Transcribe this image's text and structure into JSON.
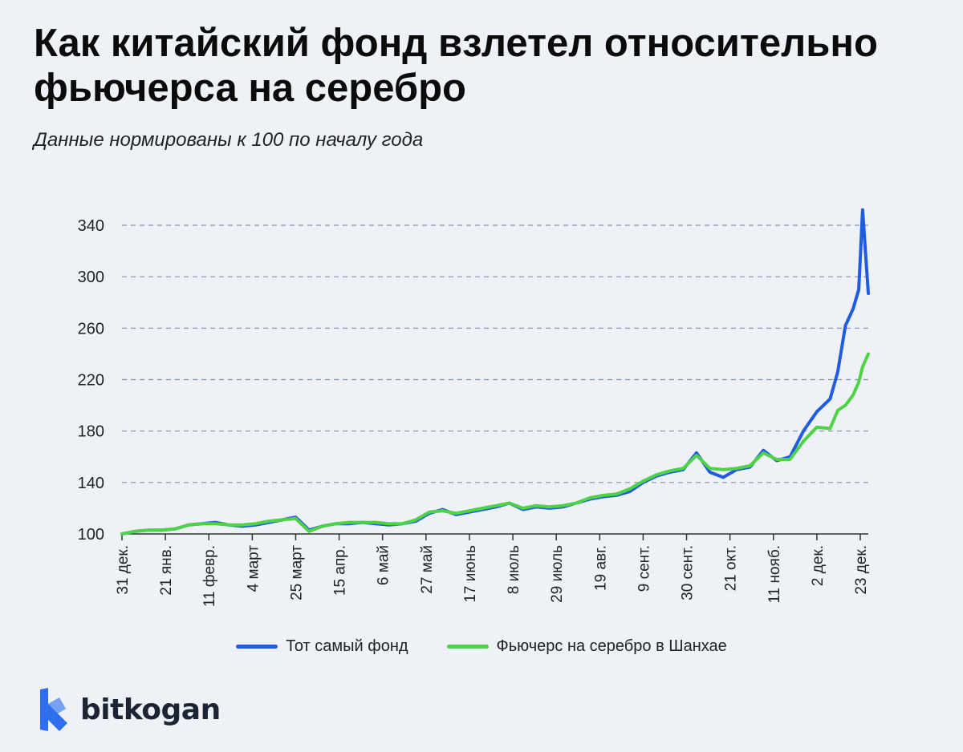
{
  "header": {
    "title": "Как китайский фонд взлетел относительно фьючерса на серебро",
    "subtitle": "Данные нормированы к 100 по началу года"
  },
  "brand": {
    "name": "bitkogan",
    "logo_icon": "bitkogan-logo-icon",
    "logo_color": "#2f6fed"
  },
  "chart_data": {
    "type": "line",
    "x_tick_labels": [
      "31 дек.",
      "21 янв.",
      "11 февр.",
      "4 март",
      "25 март",
      "15 апр.",
      "6 май",
      "27 май",
      "17 июнь",
      "8 июль",
      "29 июль",
      "19 авг.",
      "9 сент.",
      "30 сент.",
      "21 окт.",
      "11 нояб.",
      "2 дек.",
      "23 дек."
    ],
    "y_ticks": [
      100,
      140,
      180,
      220,
      260,
      300,
      340
    ],
    "ylim": [
      100,
      355
    ],
    "grid": "horizontal dashed",
    "legend_position": "bottom-center",
    "series": [
      {
        "name": "Тот самый фонд",
        "color": "#1f5ce0",
        "points": [
          [
            0,
            100
          ],
          [
            7,
            102
          ],
          [
            14,
            103
          ],
          [
            21,
            103
          ],
          [
            28,
            104
          ],
          [
            35,
            107
          ],
          [
            42,
            108
          ],
          [
            49,
            109
          ],
          [
            56,
            107
          ],
          [
            63,
            106
          ],
          [
            70,
            107
          ],
          [
            77,
            109
          ],
          [
            84,
            111
          ],
          [
            91,
            113
          ],
          [
            98,
            103
          ],
          [
            105,
            106
          ],
          [
            112,
            108
          ],
          [
            119,
            108
          ],
          [
            126,
            109
          ],
          [
            133,
            108
          ],
          [
            140,
            107
          ],
          [
            147,
            108
          ],
          [
            154,
            110
          ],
          [
            161,
            116
          ],
          [
            168,
            119
          ],
          [
            175,
            115
          ],
          [
            182,
            117
          ],
          [
            189,
            119
          ],
          [
            196,
            121
          ],
          [
            203,
            124
          ],
          [
            210,
            119
          ],
          [
            217,
            121
          ],
          [
            224,
            120
          ],
          [
            231,
            121
          ],
          [
            238,
            124
          ],
          [
            245,
            127
          ],
          [
            252,
            129
          ],
          [
            259,
            130
          ],
          [
            266,
            133
          ],
          [
            273,
            140
          ],
          [
            280,
            145
          ],
          [
            287,
            148
          ],
          [
            294,
            150
          ],
          [
            301,
            163
          ],
          [
            308,
            148
          ],
          [
            315,
            144
          ],
          [
            322,
            150
          ],
          [
            329,
            152
          ],
          [
            336,
            165
          ],
          [
            343,
            157
          ],
          [
            350,
            160
          ],
          [
            357,
            180
          ],
          [
            364,
            195
          ],
          [
            371,
            205
          ],
          [
            375,
            226
          ],
          [
            379,
            262
          ],
          [
            383,
            275
          ],
          [
            386,
            290
          ],
          [
            388,
            352
          ],
          [
            391,
            287
          ]
        ]
      },
      {
        "name": "Фьючерс на серебро в Шанхае",
        "color": "#4ed346",
        "points": [
          [
            0,
            100
          ],
          [
            7,
            102
          ],
          [
            14,
            103
          ],
          [
            21,
            103
          ],
          [
            28,
            104
          ],
          [
            35,
            107
          ],
          [
            42,
            108
          ],
          [
            49,
            108
          ],
          [
            56,
            107
          ],
          [
            63,
            107
          ],
          [
            70,
            108
          ],
          [
            77,
            110
          ],
          [
            84,
            111
          ],
          [
            91,
            112
          ],
          [
            98,
            102
          ],
          [
            105,
            106
          ],
          [
            112,
            108
          ],
          [
            119,
            109
          ],
          [
            126,
            109
          ],
          [
            133,
            109
          ],
          [
            140,
            108
          ],
          [
            147,
            108
          ],
          [
            154,
            111
          ],
          [
            161,
            117
          ],
          [
            168,
            118
          ],
          [
            175,
            116
          ],
          [
            182,
            118
          ],
          [
            189,
            120
          ],
          [
            196,
            122
          ],
          [
            203,
            124
          ],
          [
            210,
            120
          ],
          [
            217,
            122
          ],
          [
            224,
            121
          ],
          [
            231,
            122
          ],
          [
            238,
            124
          ],
          [
            245,
            128
          ],
          [
            252,
            130
          ],
          [
            259,
            131
          ],
          [
            266,
            135
          ],
          [
            273,
            141
          ],
          [
            280,
            146
          ],
          [
            287,
            149
          ],
          [
            294,
            151
          ],
          [
            301,
            161
          ],
          [
            308,
            151
          ],
          [
            315,
            150
          ],
          [
            322,
            151
          ],
          [
            329,
            153
          ],
          [
            336,
            163
          ],
          [
            343,
            158
          ],
          [
            350,
            158
          ],
          [
            357,
            172
          ],
          [
            364,
            183
          ],
          [
            371,
            182
          ],
          [
            375,
            196
          ],
          [
            379,
            200
          ],
          [
            383,
            208
          ],
          [
            386,
            218
          ],
          [
            388,
            230
          ],
          [
            391,
            240
          ]
        ]
      }
    ]
  }
}
